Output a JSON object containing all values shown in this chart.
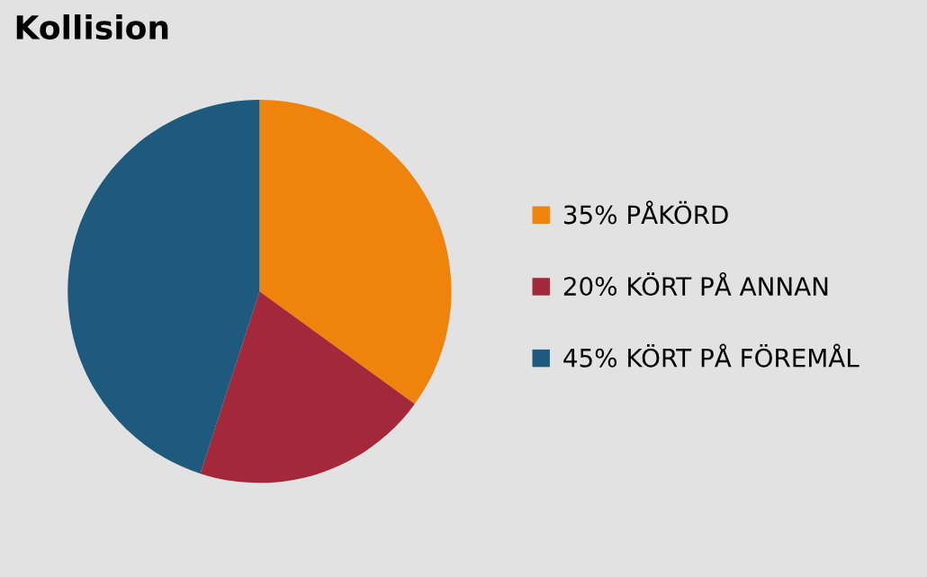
{
  "chart_data": {
    "type": "pie",
    "title": "Kollision",
    "categories": [
      "PÅKÖRD",
      "KÖRT PÅ ANNAN",
      "KÖRT PÅ FÖREMÅL"
    ],
    "values": [
      35,
      20,
      45
    ],
    "value_labels": [
      "35%",
      "20%",
      "45%"
    ],
    "colors": [
      "#f0830c",
      "#a3283a",
      "#1d5a7d"
    ],
    "legend": "right"
  }
}
